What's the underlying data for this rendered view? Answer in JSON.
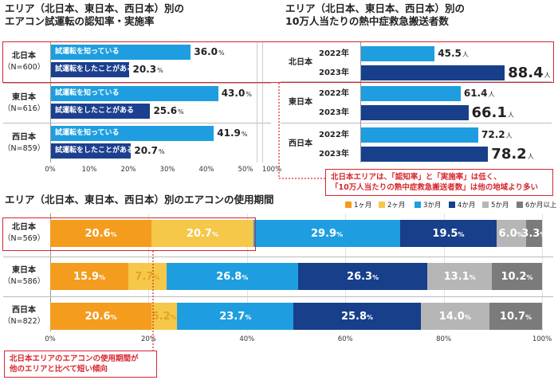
{
  "colors": {
    "accent_red": "#d7262d",
    "know": "#1e9ee0",
    "did": "#1c3f8f",
    "y2022": "#1e9ee0",
    "y2023": "#173f8a",
    "legend": [
      "#f39c1e",
      "#f5c84a",
      "#1e9ee0",
      "#173f8a",
      "#b6b6b6",
      "#7b7b7b"
    ]
  },
  "chart_data": [
    {
      "type": "bar",
      "title": "エリア（北日本、東日本、西日本）別の\nエアコン試運転の認知率・実施率",
      "title_line1": "エリア（北日本、東日本、西日本）別の",
      "title_line2": "エアコン試運転の認知率・実施率",
      "unit": "%",
      "xlim": [
        0,
        100
      ],
      "x_ticks": [
        "0%",
        "10%",
        "20%",
        "30%",
        "40%",
        "50%",
        "100%"
      ],
      "groups": [
        {
          "name": "北日本",
          "n": "（N=600）",
          "bars": [
            {
              "label": "試運転を知っている",
              "value": 36.0,
              "text": "36.0"
            },
            {
              "label": "試運転をしたことがある",
              "value": 20.3,
              "text": "20.3"
            }
          ]
        },
        {
          "name": "東日本",
          "n": "（N=616）",
          "bars": [
            {
              "label": "試運転を知っている",
              "value": 43.0,
              "text": "43.0"
            },
            {
              "label": "試運転をしたことがある",
              "value": 25.6,
              "text": "25.6"
            }
          ]
        },
        {
          "name": "西日本",
          "n": "（N=859）",
          "bars": [
            {
              "label": "試運転を知っている",
              "value": 41.9,
              "text": "41.9"
            },
            {
              "label": "試運転をしたことがある",
              "value": 20.7,
              "text": "20.7"
            }
          ]
        }
      ]
    },
    {
      "type": "bar",
      "title": "エリア（北日本、東日本、西日本）別の\n10万人当たりの熱中症救急搬送者数",
      "title_line1": "エリア（北日本、東日本、西日本）別の",
      "title_line2": "10万人当たりの熱中症救急搬送者数",
      "unit": "人",
      "groups": [
        {
          "name": "北日本",
          "bars": [
            {
              "year": "2022年",
              "value": 45.5,
              "text": "45.5"
            },
            {
              "year": "2023年",
              "value": 88.4,
              "text": "88.4"
            }
          ]
        },
        {
          "name": "東日本",
          "bars": [
            {
              "year": "2022年",
              "value": 61.4,
              "text": "61.4"
            },
            {
              "year": "2023年",
              "value": 66.1,
              "text": "66.1"
            }
          ]
        },
        {
          "name": "西日本",
          "bars": [
            {
              "year": "2022年",
              "value": 72.2,
              "text": "72.2"
            },
            {
              "year": "2023年",
              "value": 78.2,
              "text": "78.2"
            }
          ]
        }
      ]
    },
    {
      "type": "bar",
      "stacked": true,
      "title": "エリア（北日本、東日本、西日本）別のエアコンの使用期間",
      "unit": "%",
      "xlim": [
        0,
        100
      ],
      "x_ticks": [
        "0%",
        "20%",
        "40%",
        "60%",
        "80%",
        "100%"
      ],
      "legend": [
        "1ヶ月",
        "2ヶ月",
        "3か月",
        "4か月",
        "5か月",
        "6か月以上"
      ],
      "rows": [
        {
          "name": "北日本",
          "n": "（N=569）",
          "values": [
            20.6,
            20.7,
            29.9,
            19.5,
            6.0,
            3.3
          ],
          "texts": [
            "20.6",
            "20.7",
            "29.9",
            "19.5",
            "6.0",
            "3.3"
          ]
        },
        {
          "name": "東日本",
          "n": "（N=586）",
          "values": [
            15.9,
            7.7,
            26.8,
            26.3,
            13.1,
            10.2
          ],
          "texts": [
            "15.9",
            "7.7",
            "26.8",
            "26.3",
            "13.1",
            "10.2"
          ]
        },
        {
          "name": "西日本",
          "n": "（N=822）",
          "values": [
            20.6,
            5.2,
            23.7,
            25.8,
            14.0,
            10.7
          ],
          "texts": [
            "20.6",
            "5.2",
            "23.7",
            "25.8",
            "14.0",
            "10.7"
          ]
        }
      ]
    }
  ],
  "notes": {
    "top_line1": "北日本エリアは、「認知率」と「実施率」は低く、",
    "top_line2": "「10万人当たりの熱中症救急搬送者数」は他の地域より多い",
    "bottom_line1": "北日本エリアのエアコンの使用期間が",
    "bottom_line2": "他のエリアと比べて短い傾向"
  }
}
